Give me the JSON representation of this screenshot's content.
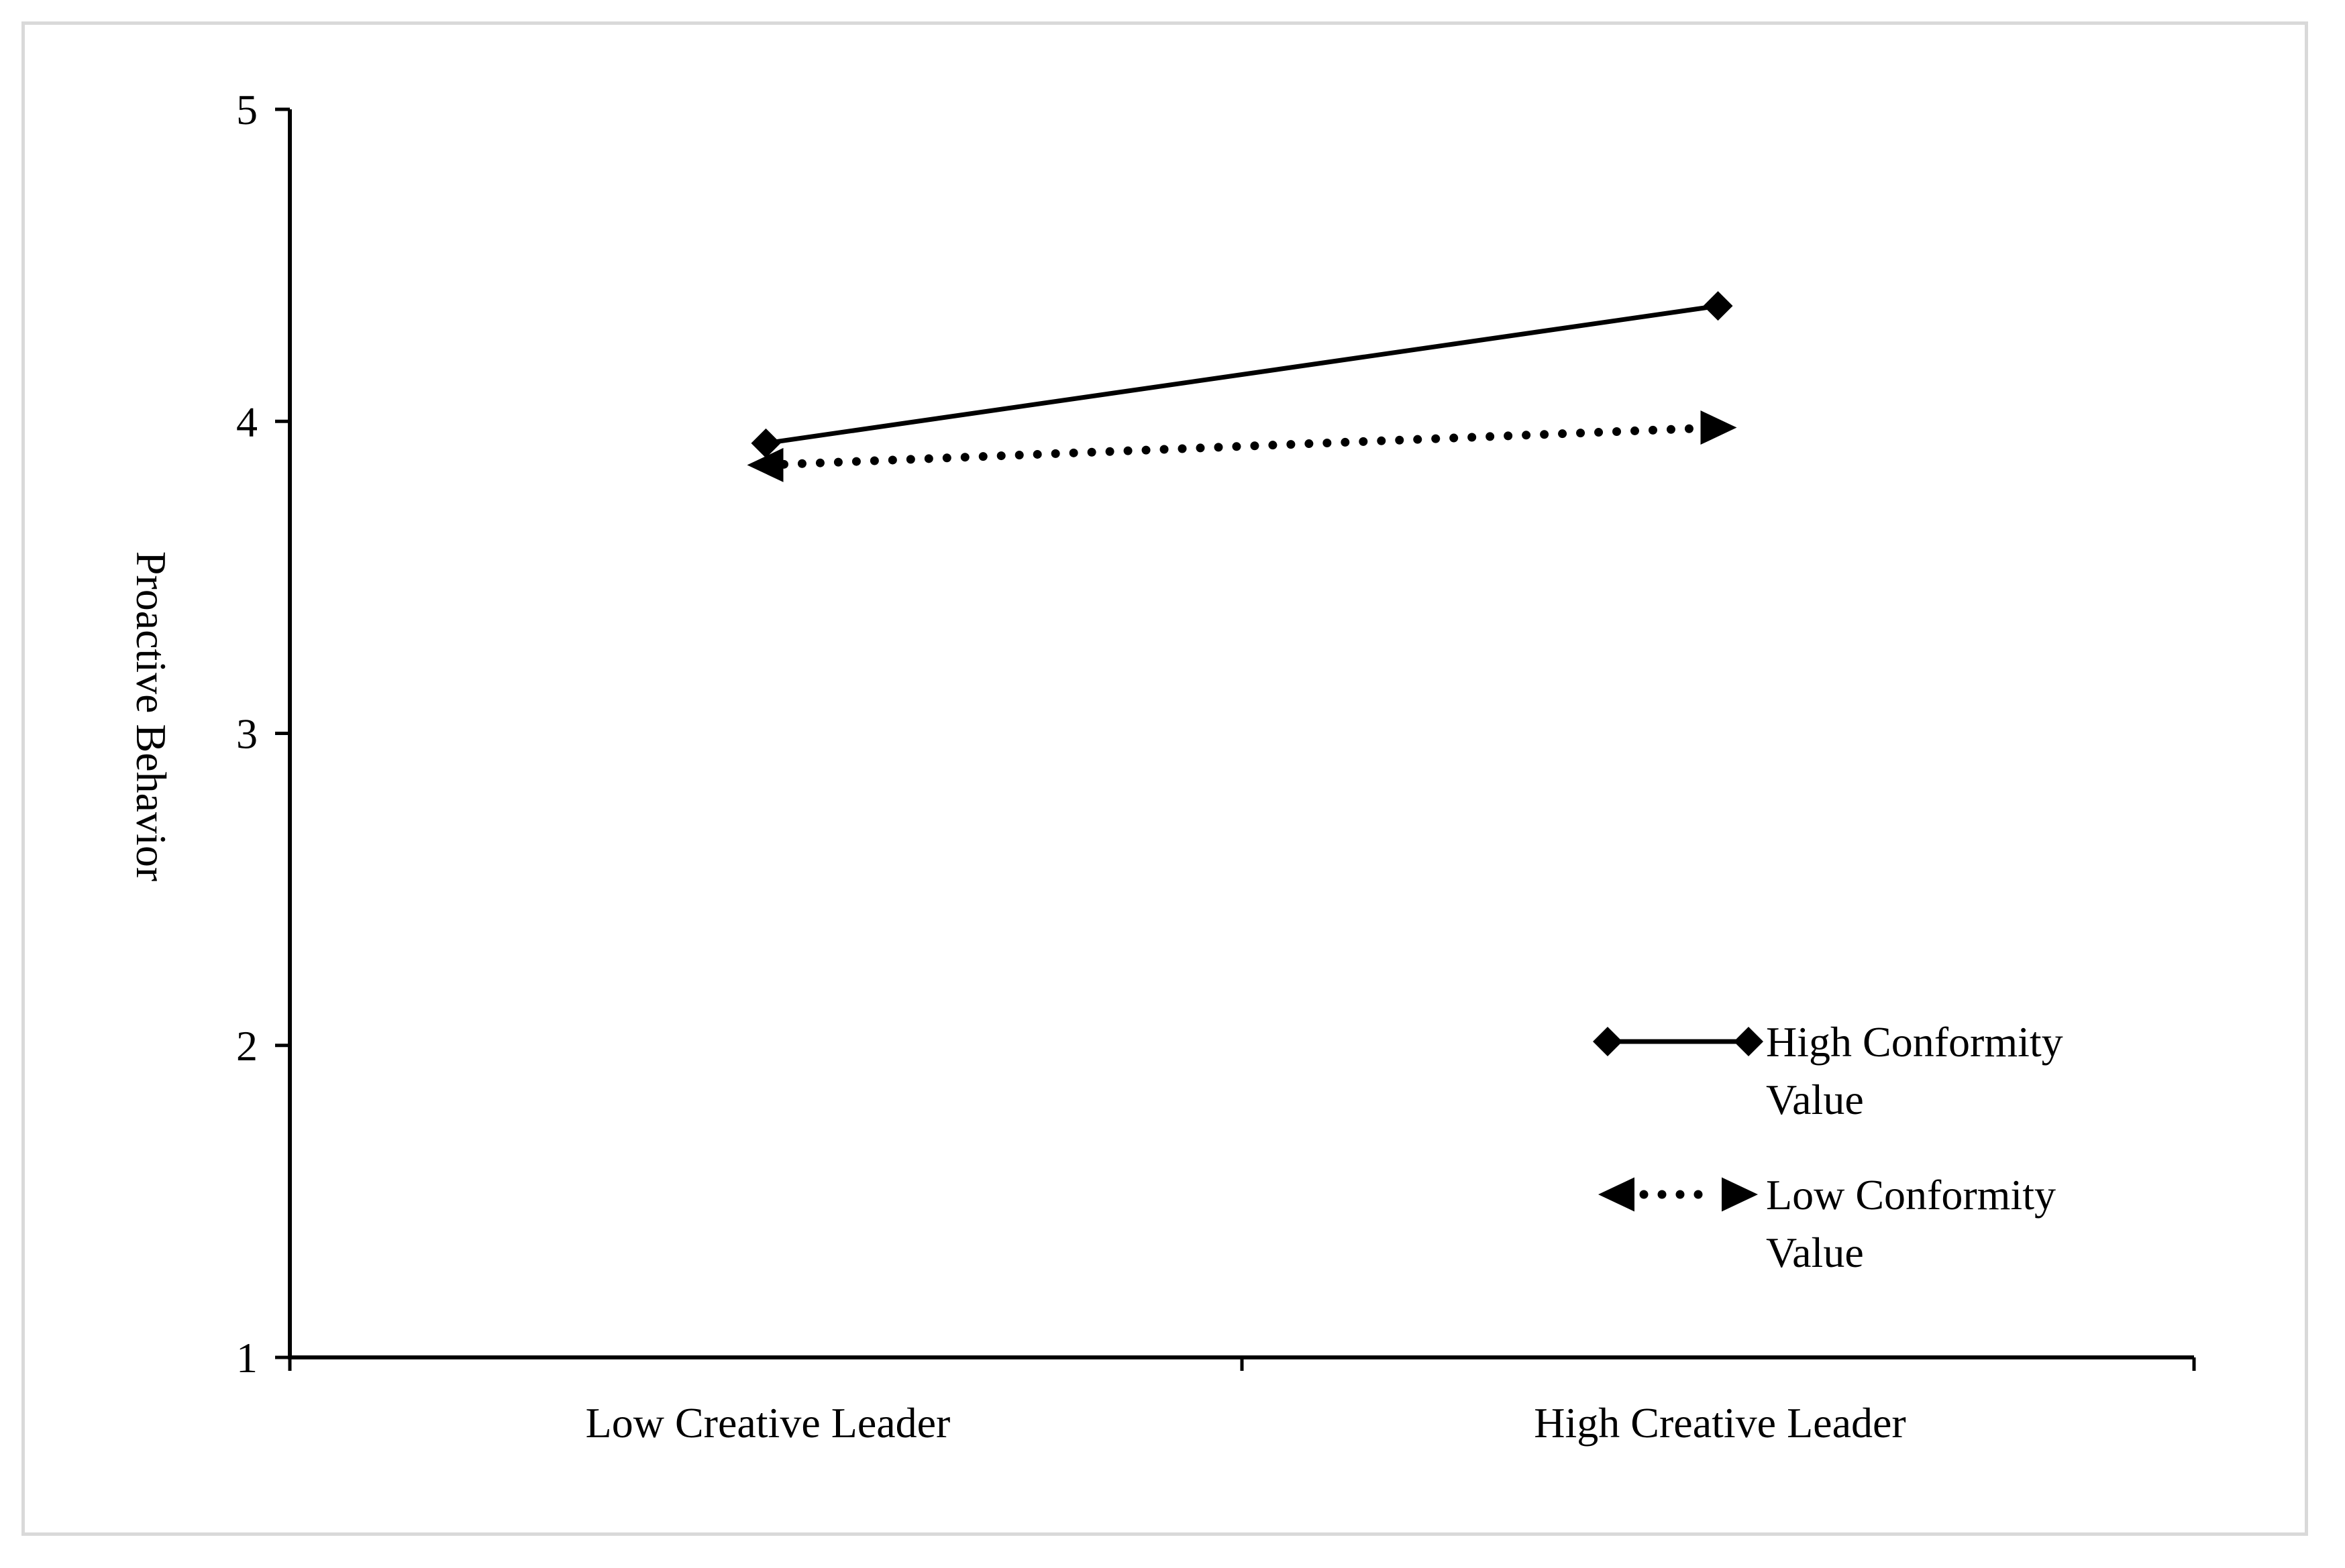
{
  "chart_data": {
    "type": "line",
    "title": "",
    "xlabel": "",
    "ylabel": "Proactive Behavior",
    "categories": [
      "Low Creative Leader",
      "High Creative Leader"
    ],
    "ylim": [
      1,
      5
    ],
    "yticks": [
      "1",
      "2",
      "3",
      "4",
      "5"
    ],
    "grid": false,
    "legend_position": "bottom-right",
    "series": [
      {
        "name": "High Conformity Value",
        "legend_lines": [
          "High Conformity",
          "Value"
        ],
        "values": [
          3.93,
          4.37
        ],
        "line_style": "solid",
        "marker": "diamond",
        "color": "#000000"
      },
      {
        "name": "Low Conformity Value",
        "legend_lines": [
          "Low Conformity",
          "Value"
        ],
        "values": [
          3.86,
          3.98
        ],
        "line_style": "dotted",
        "marker": "triangle",
        "color": "#000000"
      }
    ]
  }
}
